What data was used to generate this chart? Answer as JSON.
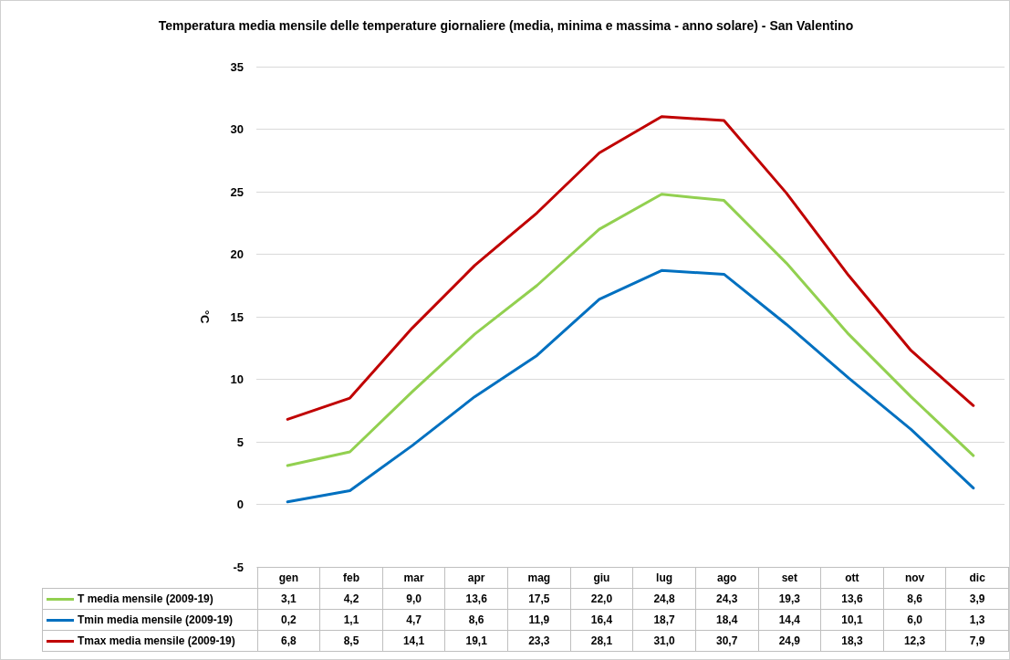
{
  "chart_data": {
    "type": "line",
    "title": "Temperatura media mensile delle temperature giornaliere (media, minima e massima - anno solare) - San Valentino",
    "ylabel": "°C",
    "categories": [
      "gen",
      "feb",
      "mar",
      "apr",
      "mag",
      "giu",
      "lug",
      "ago",
      "set",
      "ott",
      "nov",
      "dic"
    ],
    "series": [
      {
        "name": "T  media mensile (2009-19)",
        "color": "#92d050",
        "values": [
          3.1,
          4.2,
          9.0,
          13.6,
          17.5,
          22.0,
          24.8,
          24.3,
          19.3,
          13.6,
          8.6,
          3.9
        ],
        "value_labels": [
          "3,1",
          "4,2",
          "9,0",
          "13,6",
          "17,5",
          "22,0",
          "24,8",
          "24,3",
          "19,3",
          "13,6",
          "8,6",
          "3,9"
        ]
      },
      {
        "name": "Tmin media mensile (2009-19)",
        "color": "#0070c0",
        "values": [
          0.2,
          1.1,
          4.7,
          8.6,
          11.9,
          16.4,
          18.7,
          18.4,
          14.4,
          10.1,
          6.0,
          1.3
        ],
        "value_labels": [
          "0,2",
          "1,1",
          "4,7",
          "8,6",
          "11,9",
          "16,4",
          "18,7",
          "18,4",
          "14,4",
          "10,1",
          "6,0",
          "1,3"
        ]
      },
      {
        "name": "Tmax media mensile (2009-19)",
        "color": "#c00000",
        "values": [
          6.8,
          8.5,
          14.1,
          19.1,
          23.3,
          28.1,
          31.0,
          30.7,
          24.9,
          18.3,
          12.3,
          7.9
        ],
        "value_labels": [
          "6,8",
          "8,5",
          "14,1",
          "19,1",
          "23,3",
          "28,1",
          "31,0",
          "30,7",
          "24,9",
          "18,3",
          "12,3",
          "7,9"
        ]
      }
    ],
    "ylim": [
      -5,
      35
    ],
    "yticks": [
      -5,
      0,
      5,
      10,
      15,
      20,
      25,
      30,
      35
    ],
    "grid": "y",
    "legend": "bottom",
    "marker": "none",
    "line_style": "solid"
  }
}
